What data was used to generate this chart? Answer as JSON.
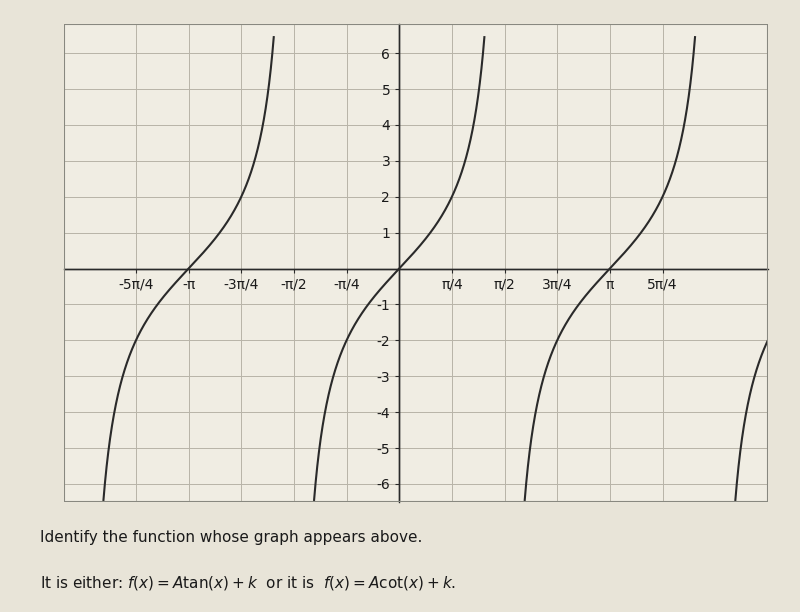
{
  "title": "",
  "function": "tan",
  "A": 2,
  "k": 0,
  "xlim": [
    -5.0,
    5.5
  ],
  "ylim": [
    -6.5,
    6.8
  ],
  "xtick_positions": [
    -3.926991,
    -3.14159265,
    -2.356194,
    -1.5707963,
    -0.7853982,
    0.7853982,
    1.5707963,
    2.356194,
    3.14159265,
    3.926991
  ],
  "xtick_labels": [
    "-5π/4",
    "-π",
    "-3π/4",
    "-π/2",
    "-π/4",
    "π/4",
    "π/2",
    "3π/4",
    "π",
    "5π/4"
  ],
  "ytick_positions": [
    -6,
    -5,
    -4,
    -3,
    -2,
    -1,
    1,
    2,
    3,
    4,
    5,
    6
  ],
  "ytick_labels": [
    "-6",
    "-5",
    "-4",
    "-3",
    "-2",
    "-1",
    "1",
    "2",
    "3",
    "4",
    "5",
    "6"
  ],
  "background_color": "#e8e4d8",
  "plot_bg_color": "#f0ede3",
  "line_color": "#2a2a2a",
  "grid_color": "#b8b4a8",
  "axis_color": "#2a2a2a",
  "text_color": "#1a1a1a",
  "font_size": 10,
  "line_width": 1.5,
  "clip_val": 6.5,
  "bottom_text1": "Identify the function whose graph appears above.",
  "bottom_text2": "It is either: f(x) = A tan(x) + k or it is f(x) = A cot(x) + k."
}
